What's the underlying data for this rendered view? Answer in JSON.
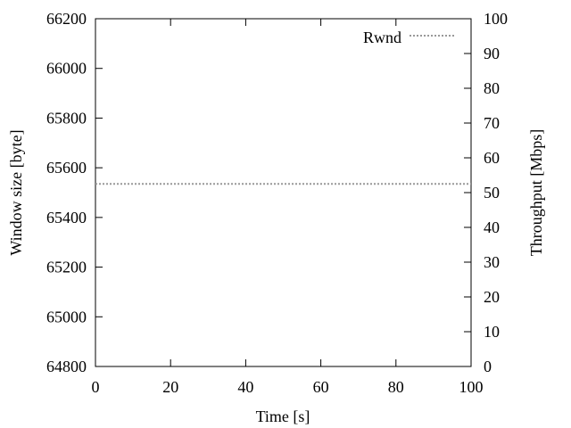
{
  "chart_data": {
    "type": "line",
    "title": "",
    "xlabel": "Time [s]",
    "ylabel": "Window size [byte]",
    "y2label": "Throughput [Mbps]",
    "xlim": [
      0,
      100
    ],
    "ylim": [
      64800,
      66200
    ],
    "y2lim": [
      0,
      100
    ],
    "x_ticks": [
      0,
      20,
      40,
      60,
      80,
      100
    ],
    "y_ticks": [
      64800,
      65000,
      65200,
      65400,
      65600,
      65800,
      66000,
      66200
    ],
    "y2_ticks": [
      0,
      10,
      20,
      30,
      40,
      50,
      60,
      70,
      80,
      90,
      100
    ],
    "grid": false,
    "legend_position": "top-right",
    "series": [
      {
        "name": "Rwnd",
        "axis": "left",
        "style": "dotted",
        "color": "#999999",
        "x": [
          0,
          100
        ],
        "y": [
          65535,
          65535
        ]
      }
    ]
  }
}
